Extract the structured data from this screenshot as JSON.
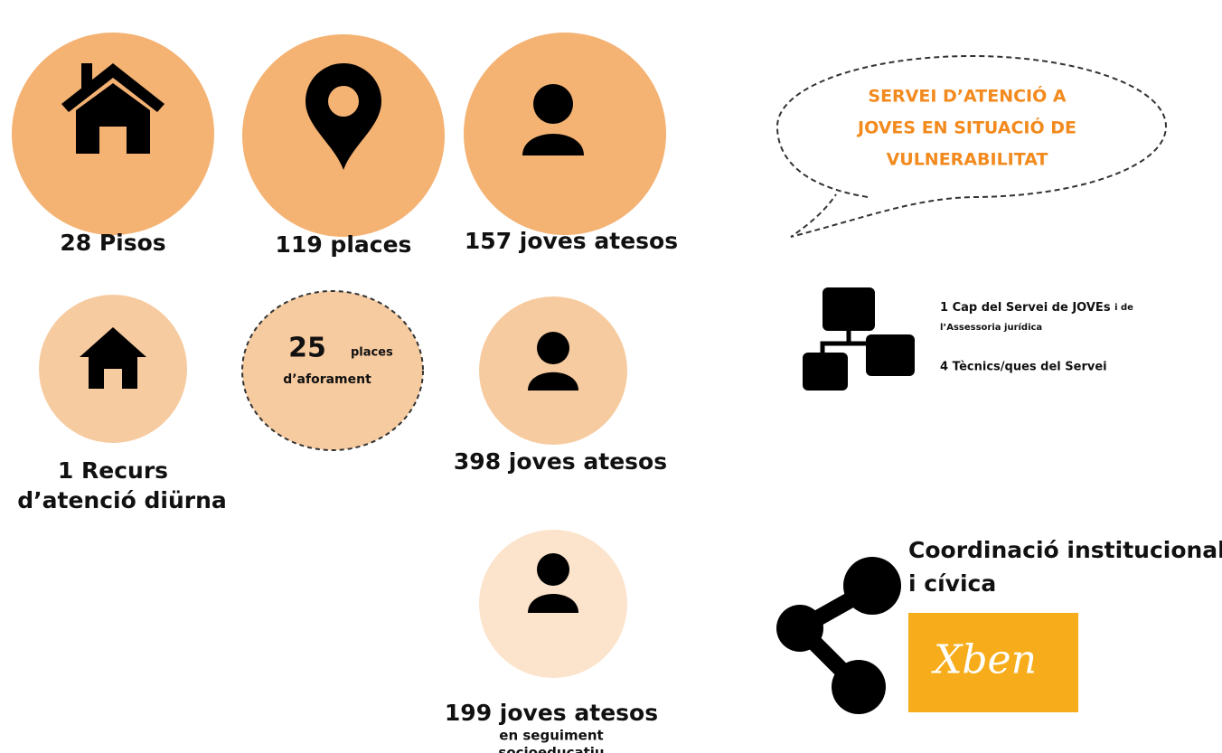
{
  "stats": [
    {
      "label": "28 Pisos"
    },
    {
      "label": "119 places"
    },
    {
      "label": "157 joves atesos"
    },
    {
      "lines": [
        "1 Recurs",
        "d’atenció diürna"
      ]
    },
    {
      "number": "25",
      "unit": "places",
      "note": "d’aforament"
    },
    {
      "label": "398 joves atesos"
    },
    {
      "label": "199 joves atesos",
      "notes": [
        "en seguiment",
        "socioeducatiu"
      ]
    }
  ],
  "bubble": {
    "lines": [
      "SERVEI D’ATENCIÓ A",
      "JOVES EN SITUACIÓ DE",
      "VULNERABILITAT"
    ]
  },
  "staff": {
    "line1": "1 Cap del Servei de JOVEs",
    "line1_suffix": "i de",
    "line2": "l’Assessoria jurídica",
    "line3": "4 Tècnics/ques del Servei"
  },
  "coordination": {
    "lines": [
      "Coordinació institucional",
      "i cívica"
    ],
    "logo": "Xben"
  }
}
